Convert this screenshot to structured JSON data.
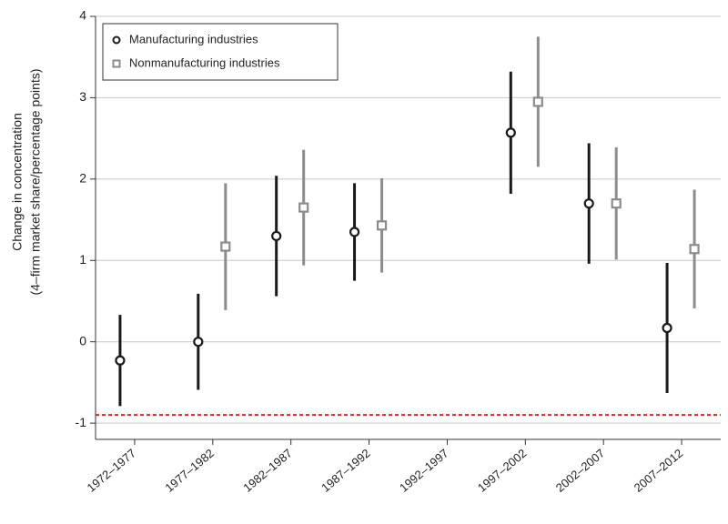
{
  "chart_data": {
    "type": "errorbar",
    "y_label": [
      "Change in concentration",
      "(4–firm market share/percentage points)"
    ],
    "categories": [
      "1972–1977",
      "1977–1982",
      "1982–1987",
      "1987–1992",
      "1992–1997",
      "1997–2002",
      "2002–2007",
      "2007–2012"
    ],
    "series": [
      {
        "name": "Manufacturing industries",
        "color": "#1a1a1a",
        "marker": "circle",
        "values": [
          -0.23,
          0.0,
          1.3,
          1.35,
          null,
          2.57,
          1.7,
          0.17
        ],
        "errors": [
          0.56,
          0.59,
          0.74,
          0.6,
          null,
          0.75,
          0.74,
          0.8
        ]
      },
      {
        "name": "Nonmanufacturing industries",
        "color": "#8c8c8c",
        "marker": "square",
        "values": [
          null,
          1.17,
          1.65,
          1.43,
          null,
          2.95,
          1.7,
          1.14
        ],
        "errors": [
          null,
          0.78,
          0.71,
          0.58,
          null,
          0.8,
          0.69,
          0.73
        ]
      }
    ],
    "reference_line": {
      "value": -0.9,
      "color": "#d62728"
    },
    "ylim": [
      -1.2,
      4.0
    ],
    "yticks": [
      -1,
      0,
      1,
      2,
      3,
      4
    ],
    "grid": true,
    "legend": "top-left"
  }
}
